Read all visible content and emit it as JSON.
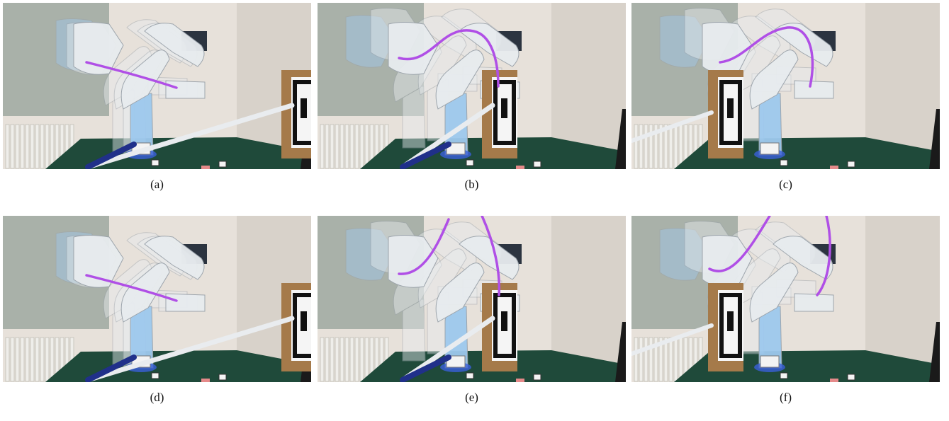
{
  "figure": {
    "panels": [
      {
        "id": "a",
        "caption": "(a)",
        "variant": "initial",
        "box": "right-side",
        "pole": "pointing-box"
      },
      {
        "id": "b",
        "caption": "(b)",
        "variant": "curve-up",
        "box": "center",
        "pole": "pointing-box"
      },
      {
        "id": "c",
        "caption": "(c)",
        "variant": "curve-over",
        "box": "left-center",
        "pole": "low"
      },
      {
        "id": "d",
        "caption": "(d)",
        "variant": "initial",
        "box": "right-side",
        "pole": "pointing-box"
      },
      {
        "id": "e",
        "caption": "(e)",
        "variant": "curve-tall",
        "box": "center",
        "pole": "pointing-box"
      },
      {
        "id": "f",
        "caption": "(f)",
        "variant": "curve-tall-over",
        "box": "left-center",
        "pole": "low"
      }
    ],
    "colors": {
      "wall": "#e7e1da",
      "wall_shade": "#cfc8bf",
      "board": "#a9b1a9",
      "table": "#1f4a3a",
      "box": "#a57a4a",
      "robot_white": "#e8ecef",
      "robot_blue": "#9ec9ee",
      "trajectory": "#b04fe6",
      "pole": "#e9ecef",
      "pole_dark": "#20308a"
    }
  }
}
